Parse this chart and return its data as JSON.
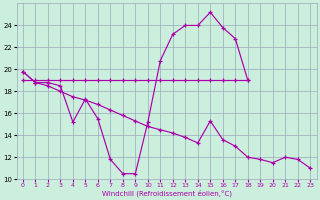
{
  "xlabel": "Windchill (Refroidissement éolien,°C)",
  "hours": [
    0,
    1,
    2,
    3,
    4,
    5,
    6,
    7,
    8,
    9,
    10,
    11,
    12,
    13,
    14,
    15,
    16,
    17,
    18,
    19,
    20,
    21,
    22,
    23
  ],
  "line_wavy_x": [
    0,
    1,
    2,
    3,
    4,
    5,
    6,
    7,
    8,
    9,
    10,
    11,
    12,
    13,
    14,
    15,
    16,
    17,
    18
  ],
  "line_wavy_y": [
    19.8,
    18.8,
    18.8,
    18.5,
    15.2,
    17.3,
    15.5,
    11.8,
    10.5,
    10.5,
    15.2,
    20.8,
    23.2,
    24.0,
    24.0,
    25.2,
    23.8,
    22.8,
    19.0
  ],
  "line_flat_x": [
    0,
    1,
    2,
    3,
    4,
    5,
    6,
    7,
    8,
    9,
    10,
    11,
    12,
    13,
    14,
    15,
    16,
    17,
    18
  ],
  "line_flat_y": [
    19.0,
    19.0,
    19.0,
    19.0,
    19.0,
    19.0,
    19.0,
    19.0,
    19.0,
    19.0,
    19.0,
    19.0,
    19.0,
    19.0,
    19.0,
    19.0,
    19.0,
    19.0,
    19.0
  ],
  "line_desc_x": [
    0,
    1,
    2,
    3,
    4,
    5,
    6,
    7,
    8,
    9,
    10,
    11,
    12,
    13,
    14,
    15,
    16,
    17,
    18,
    19,
    20,
    21,
    22,
    23
  ],
  "line_desc_y": [
    19.8,
    18.8,
    18.5,
    18.0,
    17.5,
    17.2,
    16.8,
    16.3,
    15.8,
    15.3,
    14.8,
    14.5,
    14.2,
    13.8,
    13.3,
    15.3,
    13.6,
    13.0,
    12.0,
    11.8,
    11.5,
    12.0,
    11.8,
    11.0
  ],
  "line_color": "#aa00aa",
  "bg_color": "#cceedd",
  "grid_color": "#99aabb",
  "ylim": [
    10,
    26
  ],
  "yticks": [
    10,
    12,
    14,
    16,
    18,
    20,
    22,
    24
  ],
  "xticks": [
    0,
    1,
    2,
    3,
    4,
    5,
    6,
    7,
    8,
    9,
    10,
    11,
    12,
    13,
    14,
    15,
    16,
    17,
    18,
    19,
    20,
    21,
    22,
    23
  ],
  "xlim": [
    -0.5,
    23.5
  ]
}
